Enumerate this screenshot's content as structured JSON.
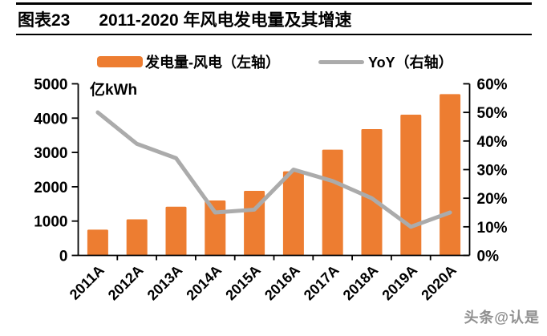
{
  "header": {
    "figure_label": "图表23",
    "title": "2011-2020 年风电发电量及其增速"
  },
  "legend": [
    {
      "label": "发电量-风电（左轴）",
      "swatch": "bar",
      "color": "#ED7D31"
    },
    {
      "label": "YoY（右轴）",
      "swatch": "line",
      "color": "#ABABAB"
    }
  ],
  "watermark": "头条@认是",
  "chart_data": {
    "type": "bar+line",
    "title": "2011-2020 年风电发电量及其增速",
    "unit_label": "亿kWh",
    "categories": [
      "2011A",
      "2012A",
      "2013A",
      "2014A",
      "2015A",
      "2016A",
      "2017A",
      "2018A",
      "2019A",
      "2020A"
    ],
    "series": [
      {
        "name": "发电量-风电（左轴）",
        "type": "bar",
        "axis": "left",
        "unit": "亿kWh",
        "color": "#ED7D31",
        "values": [
          750,
          1050,
          1420,
          1600,
          1880,
          2450,
          3080,
          3680,
          4100,
          4700
        ]
      },
      {
        "name": "YoY（右轴）",
        "type": "line",
        "axis": "right",
        "unit": "%",
        "color": "#ABABAB",
        "values": [
          50,
          39,
          34,
          15,
          16,
          30,
          26,
          20,
          10,
          15
        ]
      }
    ],
    "left_axis": {
      "min": 0,
      "max": 5000,
      "step": 1000,
      "tick_labels": [
        "0",
        "1000",
        "2000",
        "3000",
        "4000",
        "5000"
      ]
    },
    "right_axis": {
      "min": 0,
      "max": 60,
      "step": 10,
      "tick_labels": [
        "0%",
        "10%",
        "20%",
        "30%",
        "40%",
        "50%",
        "60%"
      ]
    },
    "grid": false,
    "legend_position": "top"
  }
}
